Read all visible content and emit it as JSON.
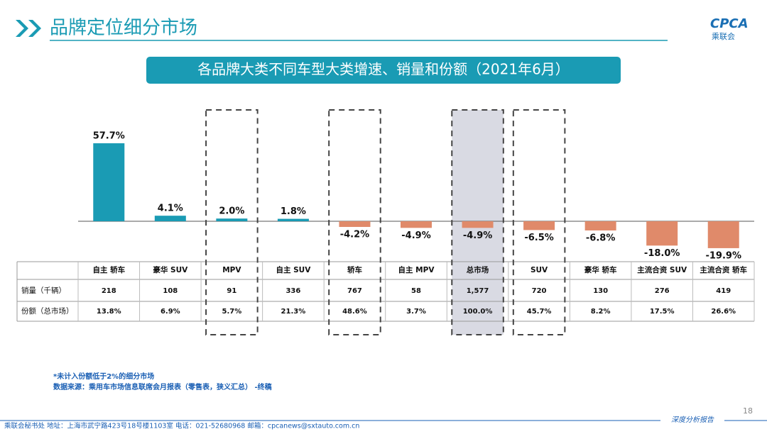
{
  "header": {
    "title": "品牌定位细分市场",
    "logo": "CPCA",
    "logo_sub": "乘联会"
  },
  "chart_data": {
    "type": "bar",
    "title": "各品牌大类不同车型大类增速、销量和份额（2021年6月）",
    "categories": [
      "自主 轿车",
      "豪华 SUV",
      "MPV",
      "自主 SUV",
      "轿车",
      "自主 MPV",
      "总市场",
      "SUV",
      "豪华 轿车",
      "主流合资 SUV",
      "主流合资 轿车"
    ],
    "values": [
      57.7,
      4.1,
      2.0,
      1.8,
      -4.2,
      -4.9,
      -4.9,
      -6.5,
      -6.8,
      -18.0,
      -19.9
    ],
    "value_labels": [
      "57.7%",
      "4.1%",
      "2.0%",
      "1.8%",
      "-4.2%",
      "-4.9%",
      "-4.9%",
      "-6.5%",
      "-6.8%",
      "-18.0%",
      "-19.9%"
    ],
    "color": "#1a9bb4",
    "negative_color": "#e08a6a",
    "table": {
      "rows": [
        {
          "label": "销量（千辆）",
          "cells": [
            "218",
            "108",
            "91",
            "336",
            "767",
            "58",
            "1,577",
            "720",
            "130",
            "276",
            "419"
          ]
        },
        {
          "label": "份额（总市场）",
          "cells": [
            "13.8%",
            "6.9%",
            "5.7%",
            "21.3%",
            "48.6%",
            "3.7%",
            "100.0%",
            "45.7%",
            "8.2%",
            "17.5%",
            "26.6%"
          ]
        }
      ]
    }
  },
  "notes": [
    "*未计入份额低于2%的细分市场",
    "数据来源：乘用车市场信息联席会月报表（零售表，狭义汇总）  -终稿"
  ],
  "footer": {
    "text": "乘联会秘书处   地址：上海市武宁路423号18号楼1103室   电话：021-52680968    邮箱：cpcanews@sxtauto.com.cn",
    "tag": "深度分析报告",
    "page": "18"
  }
}
